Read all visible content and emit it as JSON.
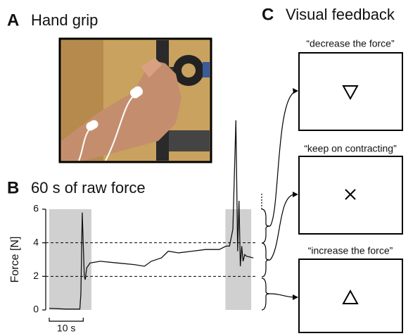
{
  "panels": {
    "a": {
      "letter": "A",
      "title": "Hand grip"
    },
    "b": {
      "letter": "B",
      "title": "60 s of raw force"
    },
    "c": {
      "letter": "C",
      "title": "Visual feedback",
      "feedback": [
        "“decrease the force”",
        "“keep on contracting”",
        "“increase the force”"
      ]
    }
  },
  "chart_data": {
    "type": "line",
    "y_label": "Force [N]",
    "x": [
      0,
      5,
      9,
      9.3,
      9.7,
      10.3,
      10.6,
      11,
      12,
      15,
      20,
      25,
      28,
      30,
      33,
      35,
      38,
      42,
      46,
      50,
      52,
      53,
      54,
      54.9,
      55.4,
      55.8,
      56.2,
      56.6,
      57,
      57.5,
      58,
      60
    ],
    "values": [
      0.1,
      0.05,
      0.05,
      1,
      5.8,
      2.0,
      1.8,
      2.5,
      2.8,
      2.9,
      2.8,
      2.7,
      2.6,
      2.9,
      3.1,
      3.5,
      3.4,
      3.5,
      3.6,
      3.6,
      3.8,
      3.8,
      4.8,
      11.3,
      3.5,
      6.5,
      2.6,
      3.8,
      2.9,
      3.3,
      3.2,
      3.1
    ],
    "color": "#111111",
    "xlim": [
      0,
      60
    ],
    "ylim": [
      0,
      6
    ],
    "yticks": [
      0,
      2,
      4,
      6
    ],
    "reference_lines": [
      2,
      4
    ],
    "highlight_ranges": [
      [
        0,
        12.4
      ],
      [
        51.8,
        59.4
      ]
    ],
    "scale_bar": {
      "length": 10,
      "label": "10 s"
    }
  }
}
